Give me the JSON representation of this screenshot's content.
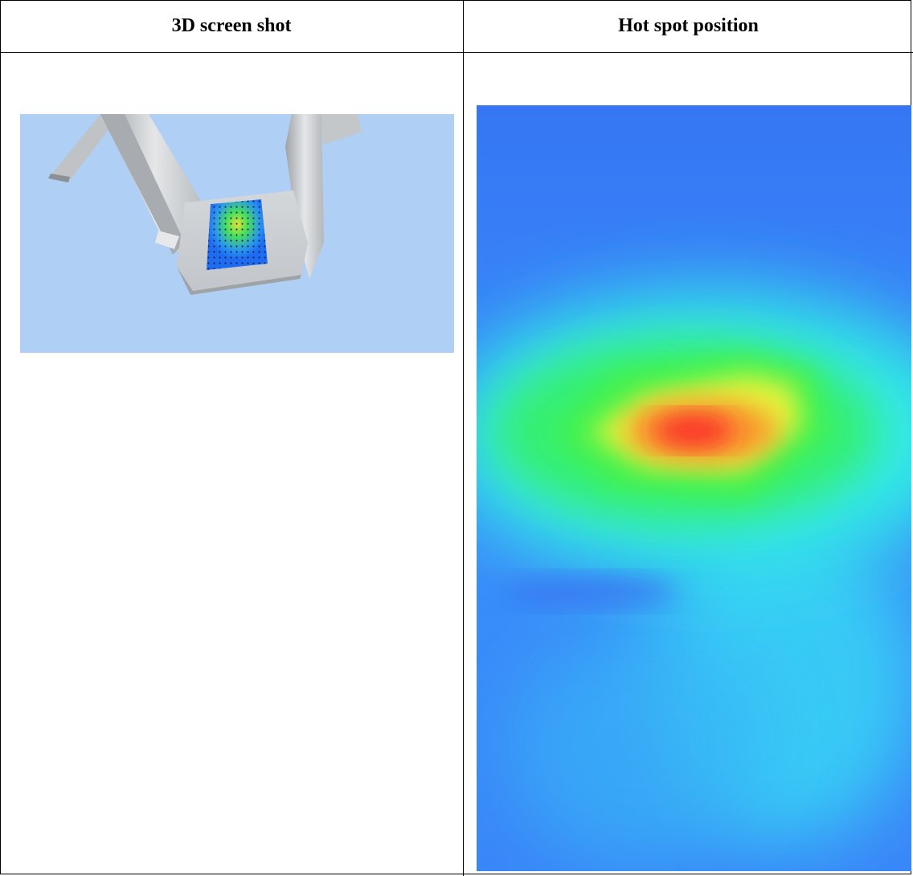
{
  "table": {
    "columns": [
      {
        "header": "3D screen shot"
      },
      {
        "header": "Hot spot position"
      }
    ]
  },
  "images": {
    "screenshot_3d": {
      "icon": "3d-model-screenshot",
      "background": "#afcff5"
    },
    "heatmap": {
      "icon": "heatmap-image",
      "colors": [
        "#3a7dfa",
        "#33f0ec",
        "#3cf55a",
        "#f9f43a",
        "#fb2a2a"
      ]
    }
  }
}
